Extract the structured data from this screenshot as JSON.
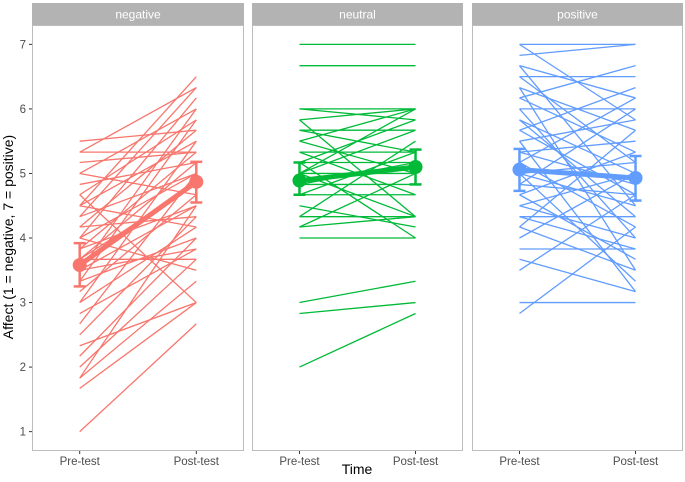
{
  "chart_data": {
    "type": "line",
    "xlabel": "Time",
    "ylabel": "Affect (1 = negative, 7 = positive)",
    "x_categories": [
      "Pre-test",
      "Post-test"
    ],
    "ylim": [
      0.7,
      7.3
    ],
    "y_ticks": [
      "1",
      "2",
      "3",
      "4",
      "5",
      "6",
      "7"
    ],
    "grid": false,
    "panels": [
      {
        "name": "negative",
        "color": "#F8766D",
        "mean": [
          3.58,
          4.87
        ],
        "ci": [
          [
            3.25,
            3.92
          ],
          [
            4.55,
            5.18
          ]
        ],
        "pairs": [
          [
            1.0,
            2.67
          ],
          [
            1.67,
            3.0
          ],
          [
            1.83,
            3.33
          ],
          [
            1.83,
            4.5
          ],
          [
            2.0,
            3.67
          ],
          [
            2.17,
            4.0
          ],
          [
            2.33,
            3.0
          ],
          [
            2.5,
            4.33
          ],
          [
            2.67,
            5.0
          ],
          [
            2.83,
            3.83
          ],
          [
            3.0,
            4.17
          ],
          [
            3.0,
            5.5
          ],
          [
            3.17,
            4.67
          ],
          [
            3.33,
            4.0
          ],
          [
            3.33,
            5.83
          ],
          [
            3.5,
            4.5
          ],
          [
            3.5,
            3.83
          ],
          [
            3.5,
            6.0
          ],
          [
            3.67,
            5.17
          ],
          [
            3.67,
            4.83
          ],
          [
            3.67,
            3.67
          ],
          [
            3.83,
            5.33
          ],
          [
            3.83,
            4.5
          ],
          [
            4.0,
            6.17
          ],
          [
            4.0,
            3.5
          ],
          [
            4.0,
            5.0
          ],
          [
            4.17,
            5.67
          ],
          [
            4.17,
            4.33
          ],
          [
            4.33,
            6.33
          ],
          [
            4.33,
            5.0
          ],
          [
            4.5,
            5.5
          ],
          [
            4.5,
            4.17
          ],
          [
            4.5,
            6.5
          ],
          [
            4.67,
            5.83
          ],
          [
            4.67,
            3.0
          ],
          [
            4.83,
            5.17
          ],
          [
            5.0,
            6.0
          ],
          [
            5.0,
            4.67
          ],
          [
            5.17,
            5.33
          ],
          [
            5.33,
            5.33
          ],
          [
            5.33,
            6.33
          ],
          [
            5.5,
            5.67
          ]
        ]
      },
      {
        "name": "neutral",
        "color": "#00BA38",
        "mean": [
          4.89,
          5.1
        ],
        "ci": [
          [
            4.67,
            5.17
          ],
          [
            4.83,
            5.37
          ]
        ],
        "pairs": [
          [
            2.0,
            2.83
          ],
          [
            2.83,
            3.0
          ],
          [
            3.0,
            3.33
          ],
          [
            4.0,
            4.0
          ],
          [
            4.17,
            4.33
          ],
          [
            4.17,
            5.0
          ],
          [
            4.33,
            4.33
          ],
          [
            4.33,
            5.5
          ],
          [
            4.5,
            4.17
          ],
          [
            4.67,
            4.67
          ],
          [
            4.67,
            5.33
          ],
          [
            4.83,
            4.83
          ],
          [
            4.83,
            5.17
          ],
          [
            5.0,
            4.33
          ],
          [
            5.0,
            5.0
          ],
          [
            5.0,
            5.67
          ],
          [
            5.0,
            6.0
          ],
          [
            5.17,
            4.0
          ],
          [
            5.17,
            5.17
          ],
          [
            5.17,
            5.83
          ],
          [
            5.33,
            5.33
          ],
          [
            5.33,
            4.67
          ],
          [
            5.5,
            5.0
          ],
          [
            5.5,
            6.0
          ],
          [
            5.67,
            5.33
          ],
          [
            5.67,
            5.67
          ],
          [
            5.83,
            6.0
          ],
          [
            5.83,
            4.33
          ],
          [
            6.0,
            5.83
          ],
          [
            6.0,
            6.0
          ],
          [
            6.67,
            6.67
          ],
          [
            7.0,
            7.0
          ]
        ]
      },
      {
        "name": "positive",
        "color": "#619CFF",
        "mean": [
          5.06,
          4.93
        ],
        "ci": [
          [
            4.73,
            5.38
          ],
          [
            4.58,
            5.27
          ]
        ],
        "pairs": [
          [
            2.83,
            4.17
          ],
          [
            3.0,
            3.0
          ],
          [
            3.5,
            4.67
          ],
          [
            3.67,
            3.17
          ],
          [
            3.83,
            3.83
          ],
          [
            4.0,
            5.0
          ],
          [
            4.17,
            3.5
          ],
          [
            4.17,
            5.67
          ],
          [
            4.33,
            4.33
          ],
          [
            4.33,
            3.83
          ],
          [
            4.5,
            5.0
          ],
          [
            4.5,
            4.0
          ],
          [
            4.67,
            5.33
          ],
          [
            4.67,
            3.67
          ],
          [
            4.83,
            4.67
          ],
          [
            4.83,
            6.0
          ],
          [
            5.0,
            5.17
          ],
          [
            5.0,
            3.33
          ],
          [
            5.0,
            4.5
          ],
          [
            5.17,
            6.17
          ],
          [
            5.17,
            4.17
          ],
          [
            5.33,
            5.5
          ],
          [
            5.33,
            4.83
          ],
          [
            5.5,
            5.83
          ],
          [
            5.5,
            3.17
          ],
          [
            5.67,
            4.67
          ],
          [
            5.67,
            6.33
          ],
          [
            5.83,
            5.0
          ],
          [
            5.83,
            4.33
          ],
          [
            6.0,
            6.0
          ],
          [
            6.0,
            4.0
          ],
          [
            6.17,
            5.33
          ],
          [
            6.17,
            6.67
          ],
          [
            6.33,
            5.67
          ],
          [
            6.33,
            3.5
          ],
          [
            6.5,
            6.5
          ],
          [
            6.5,
            5.17
          ],
          [
            6.67,
            6.17
          ],
          [
            6.67,
            4.5
          ],
          [
            6.83,
            7.0
          ],
          [
            7.0,
            5.83
          ],
          [
            7.0,
            7.0
          ]
        ]
      }
    ]
  }
}
